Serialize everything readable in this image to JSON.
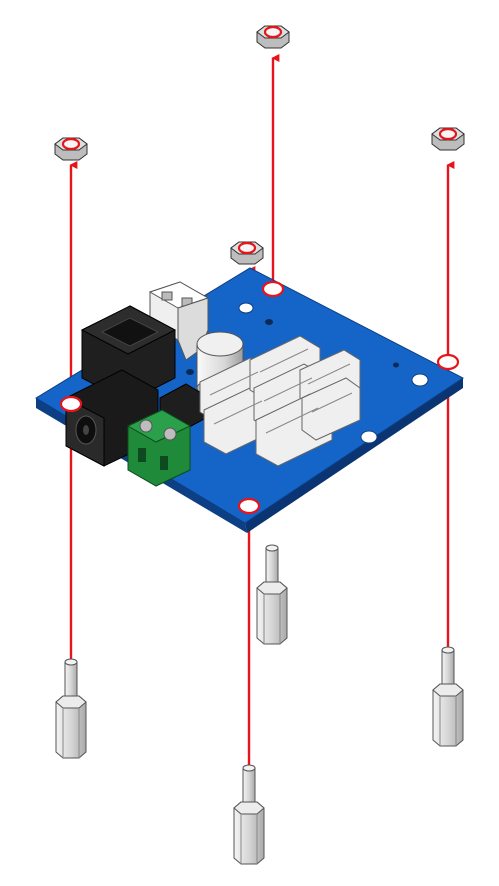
{
  "diagram": {
    "type": "exploded-assembly",
    "colors": {
      "arrow": "#e8141c",
      "board": "#1565c8",
      "board_edge": "#0d3f85",
      "metal": "#d4d4d4",
      "metal_dark": "#9a9a9a",
      "connector": "#efefef",
      "black": "#1a1a1a",
      "terminal": "#1f8a3a",
      "ring": "#e8141c"
    },
    "parts": [
      {
        "id": "pcb",
        "name": "circuit-board",
        "icon": "pcb-icon"
      },
      {
        "id": "nut",
        "name": "hex-nut",
        "icon": "hex-nut-icon",
        "count": 4
      },
      {
        "id": "standoff",
        "name": "hex-standoff",
        "icon": "hex-standoff-icon",
        "count": 4
      }
    ],
    "arrows": 4,
    "mounting_holes": 4
  }
}
